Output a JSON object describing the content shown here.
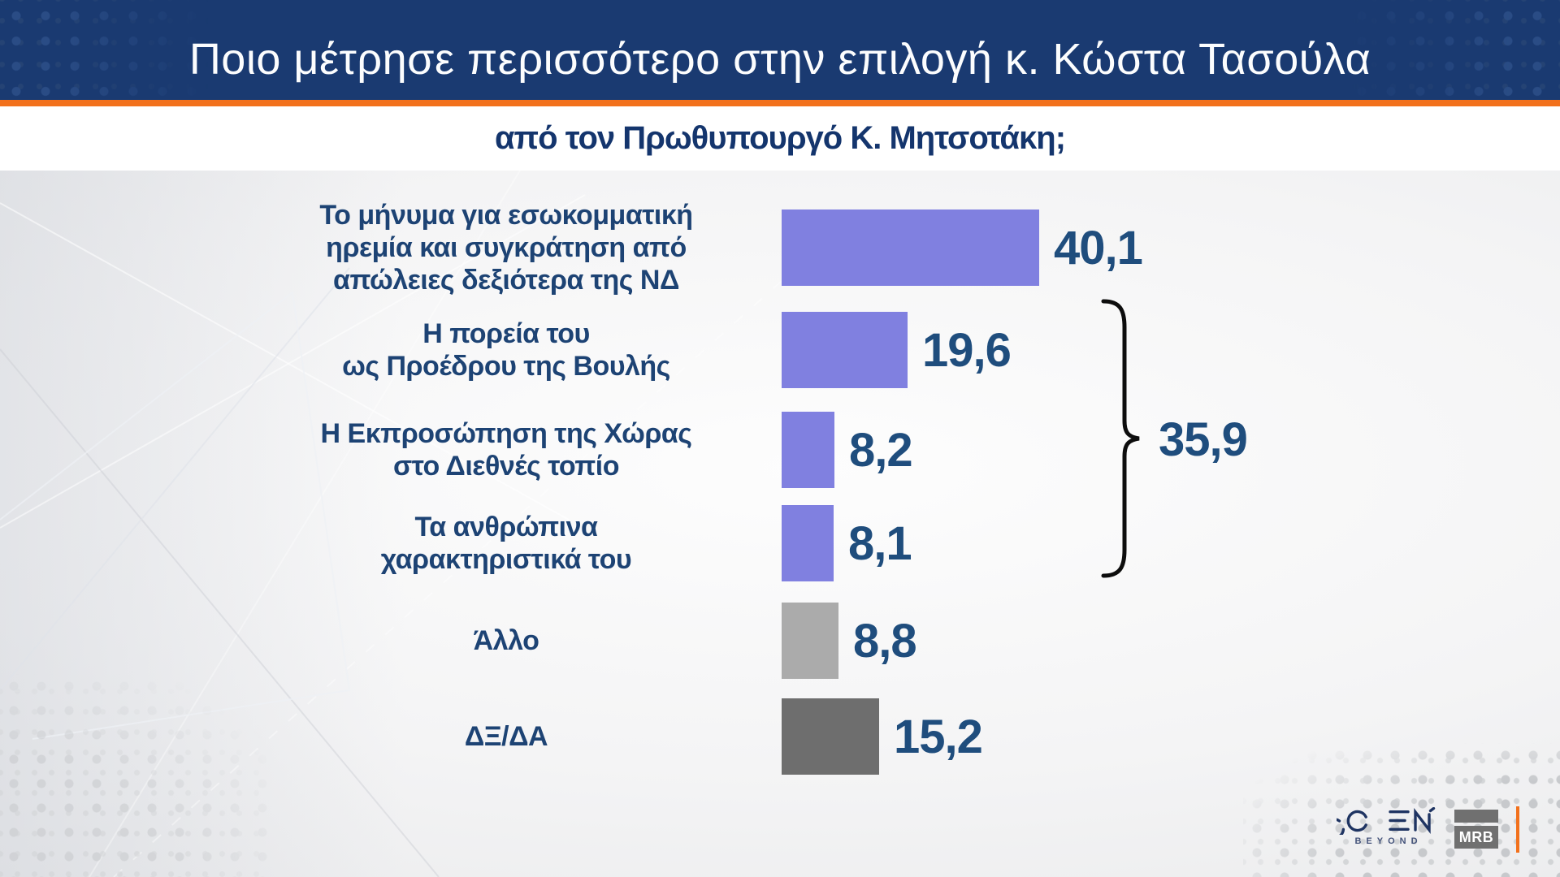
{
  "header": {
    "title": "Ποιο μέτρησε περισσότερο στην επιλογή κ. Κώστα Τασούλα",
    "subtitle": "από τον Πρωθυπουργό Κ. Μητσοτάκη;"
  },
  "colors": {
    "header_bg": "#1a3a71",
    "accent_orange": "#f2711c",
    "bar_purple": "#8080e0",
    "bar_gray": "#ababab",
    "bar_dark_gray": "#6e6e6e",
    "label_navy": "#1d4374",
    "value_navy": "#1f4d7d"
  },
  "chart_data": {
    "type": "bar",
    "orientation": "horizontal",
    "unit": "percent",
    "decimal_separator": ",",
    "categories": [
      "Το μήνυμα για εσωκομματική\nηρεμία και συγκράτηση από\nαπώλειες δεξιότερα της ΝΔ",
      "Η πορεία του\nως Προέδρου της Βουλής",
      "Η Εκπροσώπηση της Χώρας\nστο Διεθνές τοπίο",
      "Τα ανθρώπινα\nχαρακτηριστικά του",
      "Άλλο",
      "ΔΞ/ΔΑ"
    ],
    "values": [
      40.1,
      19.6,
      8.2,
      8.1,
      8.8,
      15.2
    ],
    "value_labels": [
      "40,1",
      "19,6",
      "8,2",
      "8,1",
      "8,8",
      "15,2"
    ],
    "bar_colors": [
      "#8080e0",
      "#8080e0",
      "#8080e0",
      "#8080e0",
      "#ababab",
      "#6e6e6e"
    ],
    "bracket": {
      "value": 35.9,
      "value_label": "35,9",
      "from_row": 1,
      "to_row": 3
    },
    "xlim": [
      0,
      45
    ],
    "grid": false,
    "legend": false
  },
  "footer": {
    "open_logo": "OPEN",
    "open_tagline": "BEYOND",
    "mrb_label": "MRB"
  }
}
